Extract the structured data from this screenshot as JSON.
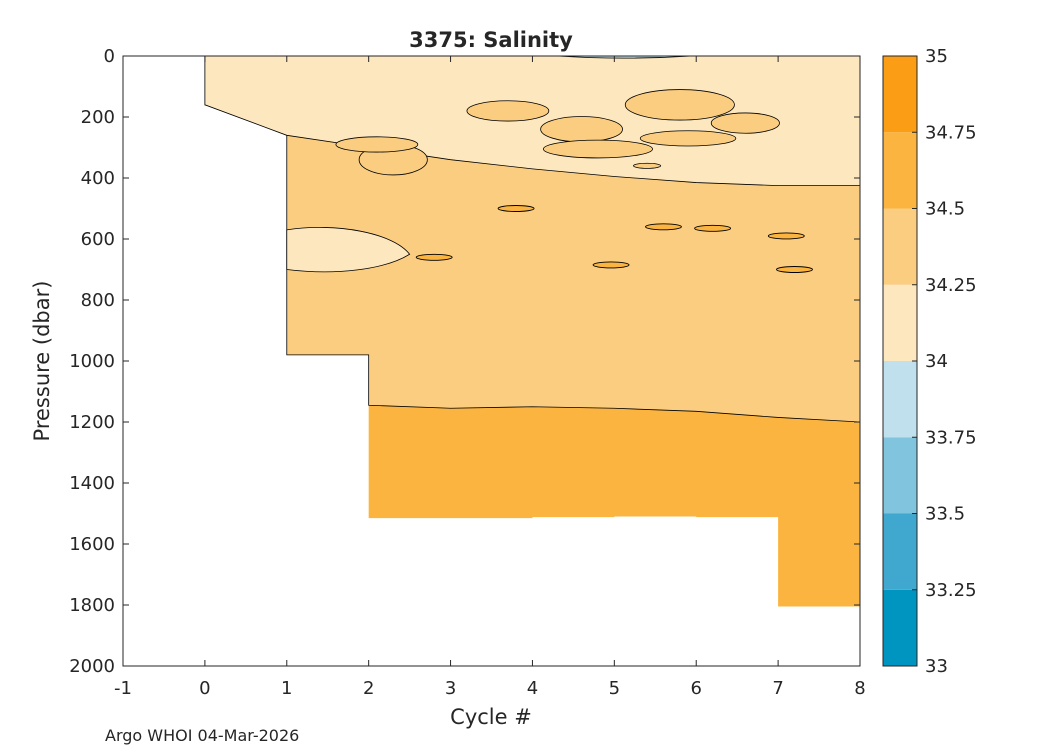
{
  "chart_data": {
    "type": "filled-contour",
    "title": "3375:  Salinity",
    "xlabel": "Cycle #",
    "ylabel": "Pressure (dbar)",
    "xlim": [
      -1,
      8
    ],
    "ylim": [
      0,
      2000
    ],
    "y_reversed": true,
    "xticks": [
      -1,
      0,
      1,
      2,
      3,
      4,
      5,
      6,
      7,
      8
    ],
    "xtick_labels": [
      "-1",
      "0",
      "1",
      "2",
      "3",
      "4",
      "5",
      "6",
      "7",
      "8"
    ],
    "yticks": [
      0,
      200,
      400,
      600,
      800,
      1000,
      1200,
      1400,
      1600,
      1800,
      2000
    ],
    "ytick_labels": [
      "0",
      "200",
      "400",
      "600",
      "800",
      "1000",
      "1200",
      "1400",
      "1600",
      "1800",
      "2000"
    ],
    "colorbar": {
      "levels": [
        33,
        33.25,
        33.5,
        33.75,
        34,
        34.25,
        34.5,
        34.75,
        35
      ],
      "labels": [
        "33",
        "33.25",
        "33.5",
        "33.75",
        "34",
        "34.25",
        "34.5",
        "34.75",
        "35"
      ],
      "colors": [
        "#0094c0",
        "#40a8cf",
        "#80c4de",
        "#bfe0ec",
        "#fde7bf",
        "#fbcd80",
        "#fbb440",
        "#fb9e16"
      ]
    },
    "profile_max_pressure": [
      {
        "cycle": 0,
        "pressure": 160
      },
      {
        "cycle": 1,
        "pressure": 980
      },
      {
        "cycle": 2,
        "pressure": 1515
      },
      {
        "cycle": 3,
        "pressure": 1515
      },
      {
        "cycle": 4,
        "pressure": 1512
      },
      {
        "cycle": 5,
        "pressure": 1510
      },
      {
        "cycle": 6,
        "pressure": 1512
      },
      {
        "cycle": 7,
        "pressure": 1805
      },
      {
        "cycle": 8,
        "pressure": 1810
      }
    ],
    "layers": [
      {
        "range": "34-34.25",
        "color": "#fde7bf",
        "boundary_below": [
          [
            0,
            160
          ],
          [
            1,
            260
          ],
          [
            2,
            300
          ],
          [
            3,
            340
          ],
          [
            4,
            370
          ],
          [
            5,
            395
          ],
          [
            6,
            415
          ],
          [
            7,
            425
          ],
          [
            8,
            425
          ]
        ]
      },
      {
        "range": "34.25-34.5",
        "color": "#fbcd80",
        "boundary_below": [
          [
            2,
            1145
          ],
          [
            3,
            1155
          ],
          [
            4,
            1150
          ],
          [
            5,
            1155
          ],
          [
            6,
            1165
          ],
          [
            7,
            1185
          ],
          [
            8,
            1200
          ]
        ]
      },
      {
        "range": "34.5-34.75",
        "color": "#fbb440"
      }
    ],
    "features": [
      {
        "kind": "patch",
        "range": "33.75-34",
        "cycle_range": [
          4.3,
          5.95
        ],
        "pressure_range": [
          0,
          10
        ]
      },
      {
        "kind": "patch",
        "range": "34-34.25",
        "cycle_range": [
          1.0,
          2.5
        ],
        "pressure_range": [
          570,
          715
        ]
      }
    ]
  },
  "footer": {
    "credit": "Argo WHOI 04-Mar-2026"
  }
}
